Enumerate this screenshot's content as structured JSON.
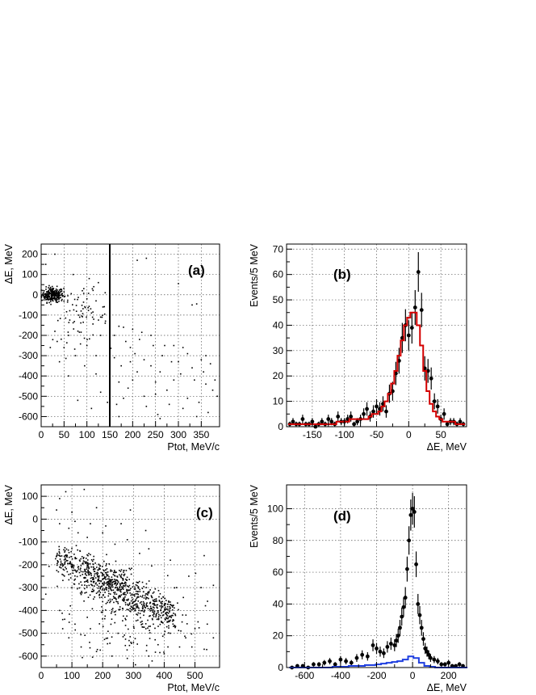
{
  "chart_data": [
    {
      "id": "a",
      "type": "scatter",
      "tag": "(a)",
      "xlabel": "Ptot, MeV/c",
      "ylabel": "ΔE, MeV",
      "xlim": [
        0,
        390
      ],
      "ylim": [
        -650,
        250
      ],
      "xticks": [
        0,
        50,
        100,
        150,
        200,
        250,
        300,
        350
      ],
      "yticks": [
        -600,
        -500,
        -400,
        -300,
        -200,
        -100,
        0,
        100,
        200
      ],
      "grid": true,
      "vertical_line_x": 150,
      "clusters": [
        {
          "cx": 25,
          "cy": 0,
          "sx": 12,
          "sy": 18,
          "n": 260
        },
        {
          "cx": 85,
          "cy": -110,
          "sx": 30,
          "sy": 60,
          "n": 70
        }
      ],
      "scatter_points": [
        [
          255,
          -590
        ],
        [
          260,
          -610
        ],
        [
          230,
          180
        ],
        [
          210,
          170
        ],
        [
          300,
          55
        ],
        [
          340,
          -45
        ],
        [
          330,
          -50
        ],
        [
          170,
          -155
        ],
        [
          180,
          -160
        ],
        [
          200,
          -170
        ],
        [
          220,
          -185
        ],
        [
          240,
          -200
        ],
        [
          290,
          -250
        ],
        [
          310,
          -260
        ],
        [
          320,
          -290
        ],
        [
          350,
          -320
        ],
        [
          360,
          -300
        ],
        [
          370,
          -340
        ],
        [
          380,
          -420
        ],
        [
          150,
          -380
        ],
        [
          170,
          -430
        ],
        [
          200,
          -420
        ],
        [
          250,
          -430
        ],
        [
          300,
          -330
        ],
        [
          330,
          -360
        ],
        [
          180,
          -510
        ],
        [
          230,
          -550
        ],
        [
          290,
          -420
        ],
        [
          360,
          -440
        ],
        [
          20,
          -260
        ],
        [
          40,
          -330
        ],
        [
          60,
          -400
        ],
        [
          80,
          -520
        ],
        [
          110,
          -560
        ],
        [
          130,
          -480
        ],
        [
          145,
          -530
        ],
        [
          165,
          -540
        ],
        [
          190,
          -460
        ],
        [
          210,
          -380
        ],
        [
          260,
          -380
        ],
        [
          275,
          -470
        ],
        [
          320,
          -510
        ],
        [
          345,
          -530
        ],
        [
          120,
          -300
        ],
        [
          100,
          -250
        ],
        [
          130,
          -200
        ],
        [
          60,
          -200
        ],
        [
          30,
          -180
        ],
        [
          110,
          -90
        ],
        [
          130,
          -110
        ],
        [
          140,
          -140
        ],
        [
          160,
          -200
        ],
        [
          185,
          -230
        ],
        [
          205,
          -290
        ],
        [
          225,
          -320
        ],
        [
          240,
          -350
        ],
        [
          265,
          -300
        ],
        [
          285,
          -330
        ],
        [
          305,
          -390
        ],
        [
          335,
          -420
        ],
        [
          355,
          -380
        ],
        [
          375,
          -470
        ],
        [
          120,
          -390
        ],
        [
          95,
          -350
        ],
        [
          75,
          -300
        ],
        [
          50,
          -260
        ],
        [
          35,
          -230
        ],
        [
          115,
          40
        ],
        [
          90,
          20
        ],
        [
          100,
          -20
        ],
        [
          120,
          -30
        ],
        [
          135,
          -60
        ],
        [
          105,
          80
        ],
        [
          125,
          60
        ],
        [
          140,
          10
        ],
        [
          70,
          100
        ],
        [
          10,
          150
        ],
        [
          30,
          200
        ],
        [
          195,
          -260
        ],
        [
          215,
          -220
        ],
        [
          245,
          -250
        ],
        [
          160,
          -310
        ],
        [
          175,
          -350
        ],
        [
          195,
          -330
        ],
        [
          270,
          -250
        ],
        [
          225,
          -500
        ],
        [
          250,
          -490
        ],
        [
          280,
          -540
        ],
        [
          310,
          -560
        ],
        [
          340,
          -600
        ],
        [
          365,
          -580
        ],
        [
          385,
          -500
        ],
        [
          170,
          -600
        ]
      ]
    },
    {
      "id": "b",
      "type": "line",
      "tag": "(b)",
      "xlabel": "ΔE, MeV",
      "ylabel": "Events/5 MeV",
      "xlim": [
        -190,
        90
      ],
      "ylim": [
        0,
        72
      ],
      "xticks": [
        -150,
        -100,
        -50,
        0,
        50
      ],
      "yticks": [
        0,
        10,
        20,
        30,
        40,
        50,
        60,
        70
      ],
      "grid": true,
      "series": [
        {
          "kind": "points",
          "x": [
            -185,
            -180,
            -175,
            -170,
            -165,
            -160,
            -155,
            -150,
            -145,
            -140,
            -135,
            -130,
            -125,
            -120,
            -115,
            -110,
            -105,
            -100,
            -95,
            -90,
            -85,
            -80,
            -75,
            -70,
            -65,
            -60,
            -55,
            -50,
            -45,
            -40,
            -35,
            -30,
            -25,
            -20,
            -15,
            -10,
            -5,
            0,
            5,
            10,
            15,
            20,
            25,
            30,
            35,
            40,
            45,
            50,
            55,
            60,
            65,
            70,
            75,
            80,
            85
          ],
          "y": [
            1,
            2,
            1,
            1,
            3,
            1,
            1,
            2,
            0,
            1,
            2,
            1,
            3,
            2,
            1,
            4,
            2,
            2,
            3,
            4,
            1,
            2,
            3,
            5,
            7,
            4,
            6,
            8,
            7,
            9,
            6,
            13,
            14,
            21,
            26,
            35,
            40,
            36,
            39,
            47,
            61,
            46,
            23,
            22,
            19,
            10,
            8,
            3,
            5,
            1,
            2,
            2,
            1,
            2,
            1
          ]
        },
        {
          "kind": "histogram",
          "color": "#d40000",
          "x": [
            -185,
            -180,
            -175,
            -170,
            -165,
            -160,
            -155,
            -150,
            -145,
            -140,
            -135,
            -130,
            -125,
            -120,
            -115,
            -110,
            -105,
            -100,
            -95,
            -90,
            -85,
            -80,
            -75,
            -70,
            -65,
            -60,
            -55,
            -50,
            -45,
            -40,
            -35,
            -30,
            -25,
            -20,
            -15,
            -10,
            -5,
            0,
            5,
            10,
            15,
            20,
            25,
            30,
            35,
            40,
            45,
            50,
            55,
            60,
            65,
            70,
            75,
            80,
            85
          ],
          "y": [
            1,
            1,
            1,
            1,
            1,
            1,
            1,
            1,
            1,
            1,
            1,
            1,
            1,
            1,
            1,
            2,
            2,
            2,
            2,
            3,
            3,
            3,
            3,
            3,
            3,
            4,
            5,
            5,
            6,
            8,
            10,
            13,
            17,
            22,
            28,
            34,
            40,
            43,
            45,
            45,
            40,
            32,
            22,
            14,
            9,
            6,
            4,
            3,
            2,
            2,
            2,
            2,
            1,
            1,
            1
          ]
        }
      ]
    },
    {
      "id": "c",
      "type": "scatter",
      "tag": "(c)",
      "xlabel": "Ptot, MeV/c",
      "ylabel": "ΔE, MeV",
      "xlim": [
        0,
        580
      ],
      "ylim": [
        -650,
        150
      ],
      "xticks": [
        0,
        100,
        200,
        300,
        400,
        500
      ],
      "yticks": [
        -600,
        -500,
        -400,
        -300,
        -200,
        -100,
        0,
        100
      ],
      "grid": true,
      "band": {
        "x_from": 50,
        "x_to": 430,
        "y_at_from": -170,
        "y_at_to": -430,
        "spread": 40,
        "n": 650
      },
      "clusters": [
        {
          "cx": 230,
          "cy": -270,
          "sx": 40,
          "sy": 35,
          "n": 120
        },
        {
          "cx": 300,
          "cy": -420,
          "sx": 100,
          "sy": 90,
          "n": 200
        }
      ],
      "scatter_points": [
        [
          80,
          120
        ],
        [
          140,
          130
        ],
        [
          60,
          90
        ],
        [
          50,
          40
        ],
        [
          100,
          30
        ],
        [
          180,
          50
        ],
        [
          290,
          40
        ],
        [
          530,
          -160
        ],
        [
          60,
          -20
        ],
        [
          90,
          -40
        ],
        [
          120,
          -60
        ],
        [
          150,
          -80
        ],
        [
          200,
          -60
        ],
        [
          240,
          -110
        ],
        [
          280,
          -90
        ],
        [
          320,
          -150
        ],
        [
          350,
          -130
        ],
        [
          420,
          -180
        ],
        [
          480,
          -250
        ],
        [
          520,
          -300
        ],
        [
          560,
          -290
        ],
        [
          70,
          -480
        ],
        [
          90,
          -520
        ],
        [
          130,
          -560
        ],
        [
          180,
          -580
        ],
        [
          230,
          -600
        ],
        [
          280,
          -610
        ],
        [
          350,
          -600
        ],
        [
          400,
          -590
        ],
        [
          450,
          -560
        ],
        [
          490,
          -560
        ],
        [
          530,
          -570
        ],
        [
          560,
          -520
        ],
        [
          110,
          -460
        ],
        [
          160,
          -480
        ],
        [
          60,
          -400
        ],
        [
          70,
          -440
        ],
        [
          95,
          -380
        ],
        [
          150,
          -430
        ],
        [
          200,
          -400
        ],
        [
          250,
          -500
        ],
        [
          300,
          -540
        ],
        [
          380,
          -550
        ],
        [
          420,
          -500
        ],
        [
          470,
          -520
        ],
        [
          510,
          -450
        ],
        [
          540,
          -460
        ],
        [
          100,
          -300
        ],
        [
          130,
          -330
        ],
        [
          170,
          -350
        ],
        [
          440,
          -300
        ],
        [
          460,
          -420
        ],
        [
          500,
          -480
        ],
        [
          110,
          -10
        ],
        [
          160,
          -20
        ],
        [
          210,
          -30
        ],
        [
          260,
          -20
        ],
        [
          340,
          -50
        ]
      ]
    },
    {
      "id": "d",
      "type": "line",
      "tag": "(d)",
      "xlabel": "ΔE, MeV",
      "ylabel": "Events/5 MeV",
      "xlim": [
        -700,
        300
      ],
      "ylim": [
        0,
        115
      ],
      "xticks": [
        -600,
        -400,
        -200,
        0,
        200
      ],
      "yticks": [
        0,
        20,
        40,
        60,
        80,
        100
      ],
      "grid": true,
      "series": [
        {
          "kind": "points",
          "x": [
            -670,
            -640,
            -610,
            -580,
            -550,
            -520,
            -490,
            -460,
            -430,
            -400,
            -370,
            -340,
            -310,
            -280,
            -250,
            -220,
            -200,
            -180,
            -160,
            -140,
            -120,
            -100,
            -90,
            -80,
            -70,
            -60,
            -50,
            -40,
            -30,
            -20,
            -10,
            0,
            10,
            20,
            30,
            40,
            50,
            60,
            70,
            80,
            90,
            100,
            120,
            140,
            160,
            180,
            200,
            220,
            240,
            260,
            280
          ],
          "y": [
            0,
            1,
            1,
            0,
            2,
            2,
            3,
            4,
            2,
            5,
            4,
            3,
            6,
            8,
            7,
            14,
            12,
            10,
            9,
            13,
            15,
            14,
            17,
            20,
            25,
            32,
            38,
            44,
            62,
            80,
            96,
            100,
            98,
            65,
            40,
            33,
            25,
            18,
            12,
            10,
            8,
            6,
            5,
            4,
            2,
            2,
            3,
            1,
            1,
            2,
            1
          ]
        },
        {
          "kind": "histogram",
          "color": "#1f3fe0",
          "x": [
            -670,
            -640,
            -610,
            -580,
            -550,
            -520,
            -490,
            -460,
            -430,
            -400,
            -370,
            -340,
            -310,
            -280,
            -250,
            -220,
            -190,
            -160,
            -130,
            -100,
            -70,
            -40,
            -10,
            20,
            50,
            80,
            110,
            140,
            170,
            200,
            230,
            260,
            290
          ],
          "y": [
            0,
            0,
            0,
            0,
            0,
            0,
            0,
            0,
            0.5,
            0.5,
            0.5,
            1,
            1,
            1,
            1.5,
            1.5,
            2,
            2.5,
            3,
            3.5,
            4,
            5,
            7,
            6,
            3,
            1,
            0.5,
            0,
            0,
            0,
            0,
            0,
            0
          ]
        }
      ]
    }
  ]
}
